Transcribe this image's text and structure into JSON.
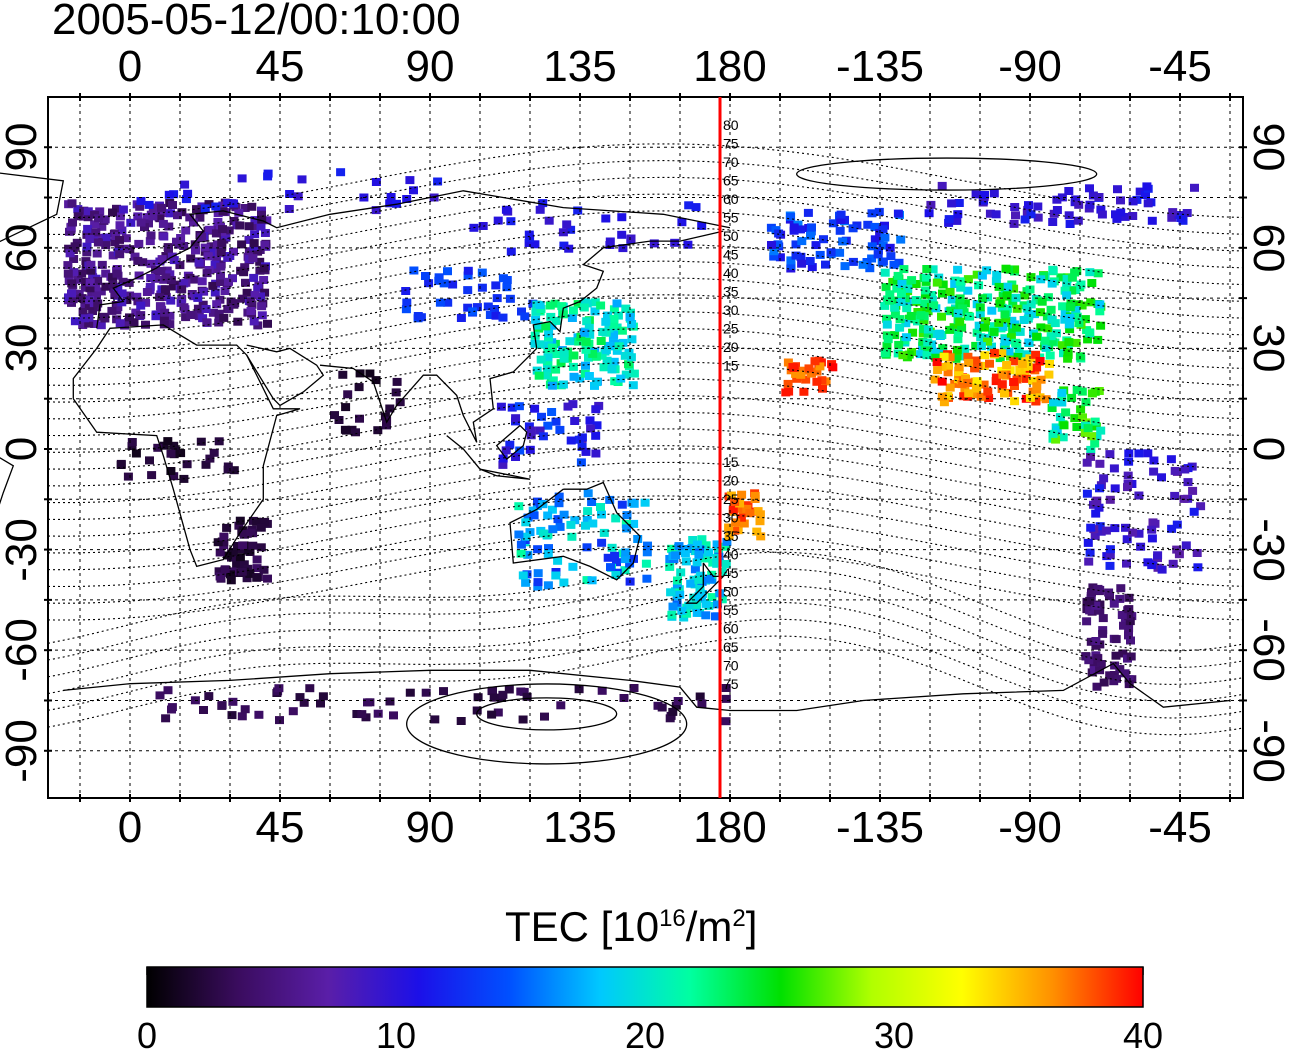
{
  "title": "2005-05-12/00:10:00",
  "map": {
    "lon_ticks_top": [
      "0",
      "45",
      "90",
      "135",
      "180",
      "-135",
      "-90",
      "-45"
    ],
    "lon_ticks_bottom": [
      "0",
      "45",
      "90",
      "135",
      "180",
      "-135",
      "-90",
      "-45"
    ],
    "lat_ticks_left": [
      "90",
      "60",
      "30",
      "0",
      "-30",
      "-60",
      "-90"
    ],
    "lat_ticks_right": [
      "90",
      "60",
      "30",
      "0",
      "-30",
      "-60",
      "-90"
    ],
    "local_time_meridian_lon": 180,
    "meridian_color": "#ff0000",
    "meridian_labels_north": [
      "80",
      "75",
      "70",
      "65",
      "60",
      "55",
      "50",
      "45",
      "40",
      "35",
      "30",
      "25",
      "20",
      "15"
    ],
    "meridian_labels_south": [
      "15",
      "20",
      "25",
      "30",
      "35",
      "40",
      "45",
      "50",
      "55",
      "60",
      "65",
      "70",
      "75"
    ]
  },
  "colorbar": {
    "title_main": "TEC  [10",
    "title_sup1": "16",
    "title_mid": "/m",
    "title_sup2": "2",
    "title_end": "]",
    "min": 0,
    "max": 40,
    "ticks": [
      "0",
      "10",
      "20",
      "30",
      "40"
    ],
    "colormap": [
      "#000000",
      "#3a0c5e",
      "#5a1ea8",
      "#1c10e8",
      "#0050ff",
      "#00c8ff",
      "#00ffa0",
      "#00e000",
      "#b0ff00",
      "#ffff00",
      "#ff9000",
      "#ff0000"
    ]
  }
}
